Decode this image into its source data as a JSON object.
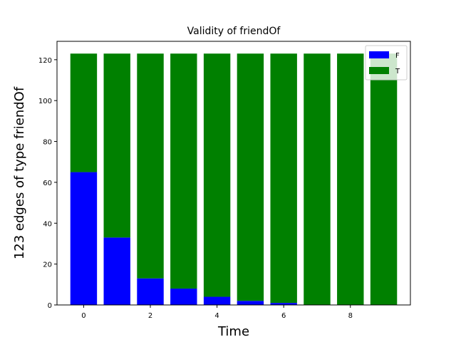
{
  "chart_data": {
    "type": "bar",
    "stacked": true,
    "title": "Validity of friendOf",
    "xlabel": "Time",
    "ylabel": "123 edges  of type friendOf",
    "x": [
      0,
      1,
      2,
      3,
      4,
      5,
      6,
      7,
      8,
      9
    ],
    "series": [
      {
        "name": "F",
        "color": "#0000ff",
        "values": [
          65,
          33,
          13,
          8,
          4,
          2,
          1,
          0,
          0,
          0
        ]
      },
      {
        "name": "T",
        "color": "#008000",
        "values": [
          58,
          90,
          110,
          115,
          119,
          121,
          122,
          123,
          123,
          123
        ]
      }
    ],
    "xlim": [
      -0.8,
      9.8
    ],
    "ylim": [
      0,
      129
    ],
    "xticks": [
      0,
      2,
      4,
      6,
      8
    ],
    "yticks": [
      0,
      20,
      40,
      60,
      80,
      100,
      120
    ],
    "grid": false,
    "legend_position": "top-right"
  }
}
